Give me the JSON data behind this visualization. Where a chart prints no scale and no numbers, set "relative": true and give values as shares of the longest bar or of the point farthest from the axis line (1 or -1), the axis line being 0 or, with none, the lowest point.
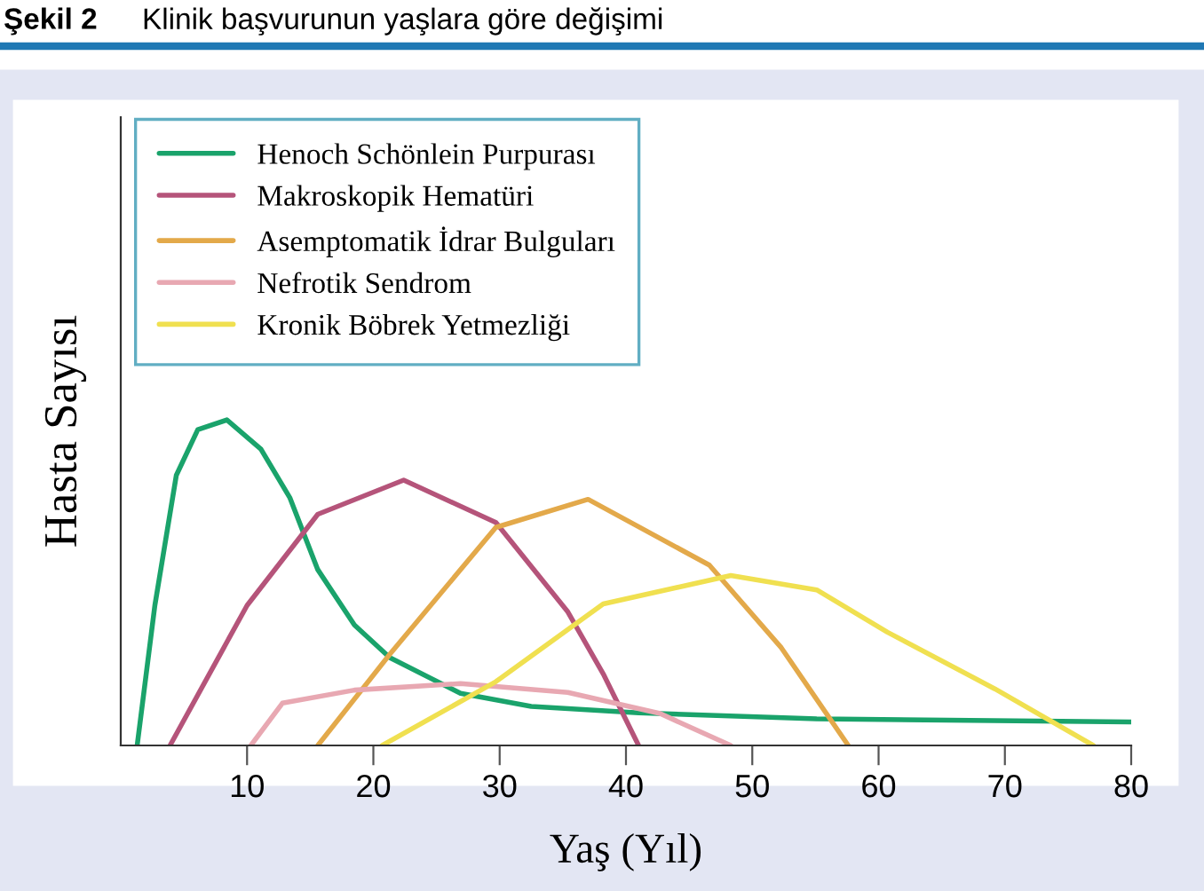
{
  "chart_data": {
    "type": "line",
    "title": "Şekil 2",
    "subtitle": "Klinik başvurunun yaşlara göre değişimi",
    "xlabel": "Yaş (Yıl)",
    "ylabel": "Hasta Sayısı",
    "relative": true,
    "xlim": [
      0,
      80
    ],
    "xticks": [
      10,
      20,
      30,
      40,
      50,
      60,
      70,
      80
    ],
    "legend": "top left",
    "grid": false,
    "marker": "none",
    "line_style": "solid",
    "series": [
      {
        "name": "Henoch Schönlein Purpurası",
        "color": "#1aa36b",
        "x": [
          1.3,
          2.7,
          4.4,
          6.1,
          8.4,
          11.1,
          13.4,
          15.6,
          18.5,
          21.3,
          26.9,
          32.5,
          41.0,
          55.1,
          80
        ],
        "values": [
          0,
          0.43,
          0.83,
          0.97,
          1.0,
          0.91,
          0.76,
          0.54,
          0.37,
          0.27,
          0.16,
          0.12,
          0.1,
          0.082,
          0.072
        ]
      },
      {
        "name": "Makroskopik Hematüri",
        "color": "#b5547a",
        "x": [
          3.9,
          10.0,
          15.6,
          22.4,
          29.7,
          35.4,
          38.2,
          41.0
        ],
        "values": [
          0,
          0.43,
          0.71,
          0.815,
          0.685,
          0.41,
          0.22,
          0
        ]
      },
      {
        "name": "Asemptomatik İdrar Bulguları",
        "color": "#e3a94a",
        "x": [
          15.6,
          21.3,
          29.7,
          37.0,
          46.6,
          52.3,
          57.6
        ],
        "values": [
          0,
          0.28,
          0.67,
          0.756,
          0.554,
          0.3,
          0
        ]
      },
      {
        "name": "Nefrotik Sendrom",
        "color": "#e8a8b2",
        "x": [
          10.3,
          12.8,
          18.5,
          26.9,
          35.4,
          42.7,
          48.3
        ],
        "values": [
          0,
          0.13,
          0.17,
          0.19,
          0.163,
          0.098,
          0
        ]
      },
      {
        "name": "Kronik Böbrek Yetmezliği",
        "color": "#f0e050",
        "x": [
          20.7,
          29.7,
          38.2,
          48.3,
          55.1,
          60.7,
          69.2,
          77.0
        ],
        "values": [
          0,
          0.196,
          0.435,
          0.522,
          0.478,
          0.348,
          0.174,
          0
        ]
      }
    ]
  }
}
